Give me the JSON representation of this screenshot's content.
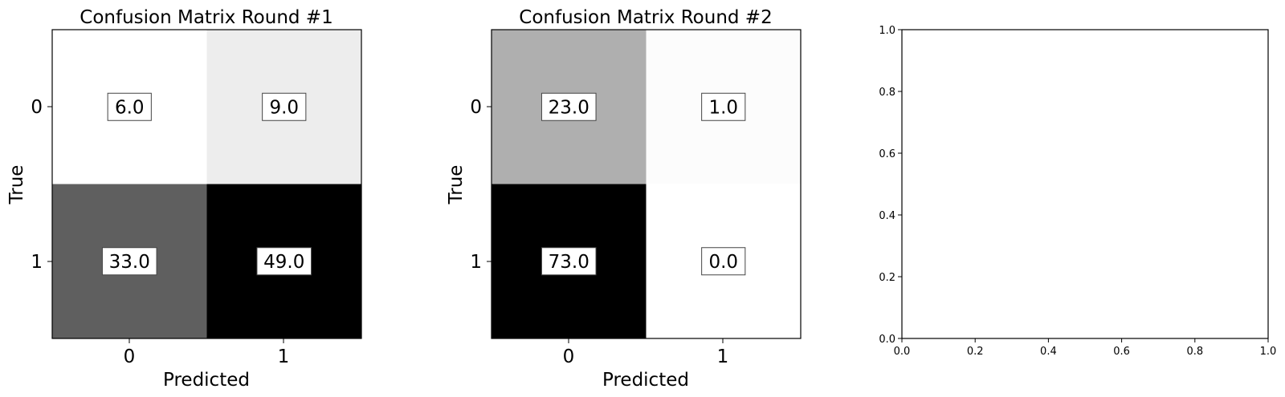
{
  "chart_data": [
    {
      "type": "heatmap",
      "title": "Confusion Matrix Round #1",
      "xlabel": "Predicted",
      "ylabel": "True",
      "x_categories": [
        "0",
        "1"
      ],
      "y_categories": [
        "0",
        "1"
      ],
      "values": [
        [
          6.0,
          9.0
        ],
        [
          33.0,
          49.0
        ]
      ],
      "value_labels": [
        [
          "6.0",
          "9.0"
        ],
        [
          "33.0",
          "49.0"
        ]
      ],
      "colormap": "Greys"
    },
    {
      "type": "heatmap",
      "title": "Confusion Matrix Round #2",
      "xlabel": "Predicted",
      "ylabel": "True",
      "x_categories": [
        "0",
        "1"
      ],
      "y_categories": [
        "0",
        "1"
      ],
      "values": [
        [
          23.0,
          1.0
        ],
        [
          73.0,
          0.0
        ]
      ],
      "value_labels": [
        [
          "23.0",
          "1.0"
        ],
        [
          "73.0",
          "0.0"
        ]
      ],
      "colormap": "Greys"
    },
    {
      "type": "scatter",
      "title": "",
      "xlabel": "",
      "ylabel": "",
      "xlim": [
        0.0,
        1.0
      ],
      "ylim": [
        0.0,
        1.0
      ],
      "x_ticks": [
        "0.0",
        "0.2",
        "0.4",
        "0.6",
        "0.8",
        "1.0"
      ],
      "y_ticks": [
        "0.0",
        "0.2",
        "0.4",
        "0.6",
        "0.8",
        "1.0"
      ],
      "series": []
    }
  ]
}
